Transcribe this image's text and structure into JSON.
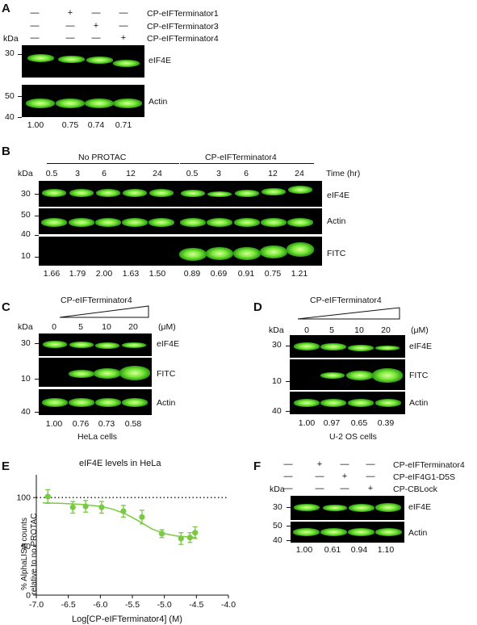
{
  "panelA": {
    "letter": "A",
    "treatments": [
      "CP-eIFTerminator1",
      "CP-eIFTerminator3",
      "CP-eIFTerminator4"
    ],
    "signs": [
      [
        "—",
        "+",
        "—",
        "—"
      ],
      [
        "—",
        "—",
        "+",
        "—"
      ],
      [
        "—",
        "—",
        "—",
        "+"
      ]
    ],
    "kda_label": "kDa",
    "mw": [
      "30",
      "50",
      "40"
    ],
    "blot_labels": [
      "eIF4E",
      "Actin"
    ],
    "quant": [
      "1.00",
      "0.75",
      "0.74",
      "0.71"
    ]
  },
  "panelB": {
    "letter": "B",
    "group1": "No PROTAC",
    "group2": "CP-eIFTerminator4",
    "times": [
      "0.5",
      "3",
      "6",
      "12",
      "24",
      "0.5",
      "3",
      "6",
      "12",
      "24"
    ],
    "time_label": "Time (hr)",
    "kda_label": "kDa",
    "mw": [
      "30",
      "50",
      "40",
      "10"
    ],
    "blot_labels": [
      "eIF4E",
      "Actin",
      "FITC"
    ],
    "quant": [
      "1.66",
      "1.79",
      "2.00",
      "1.63",
      "1.50",
      "0.89",
      "0.69",
      "0.91",
      "0.75",
      "1.21"
    ]
  },
  "panelC": {
    "letter": "C",
    "compound": "CP-eIFTerminator4",
    "doses": [
      "0",
      "5",
      "10",
      "20"
    ],
    "unit": "(μM)",
    "kda_label": "kDa",
    "mw": [
      "30",
      "10",
      "40"
    ],
    "blot_labels": [
      "eIF4E",
      "FITC",
      "Actin"
    ],
    "quant": [
      "1.00",
      "0.76",
      "0.73",
      "0.58"
    ],
    "cell_line": "HeLa cells"
  },
  "panelD": {
    "letter": "D",
    "compound": "CP-eIFTerminator4",
    "doses": [
      "0",
      "5",
      "10",
      "20"
    ],
    "unit": "(μM)",
    "kda_label": "kDa",
    "mw": [
      "30",
      "10",
      "40"
    ],
    "blot_labels": [
      "eIF4E",
      "FITC",
      "Actin"
    ],
    "quant": [
      "1.00",
      "0.97",
      "0.65",
      "0.39"
    ],
    "cell_line": "U-2 OS cells"
  },
  "panelE": {
    "letter": "E",
    "chart_data": {
      "type": "scatter",
      "title": "eIF4E levels in HeLa",
      "xlabel": "Log[CP-eIFTerminator4] (M)",
      "ylabel_line1": "% AlphaLISA counts",
      "ylabel_line2": "relative to no PROTAC",
      "xlim": [
        -7.0,
        -4.0
      ],
      "ylim": [
        0,
        120
      ],
      "xticks": [
        "-7.0",
        "-6.5",
        "-6.0",
        "-5.5",
        "-5.0",
        "-4.5",
        "-4.0"
      ],
      "yticks": [
        "0",
        "50",
        "100"
      ],
      "reference_line": 100,
      "x": [
        -6.82,
        -6.43,
        -6.23,
        -5.98,
        -5.64,
        -5.35,
        -5.04,
        -4.74,
        -4.6,
        -4.52
      ],
      "y": [
        101,
        90,
        91,
        90,
        86,
        80,
        63,
        58,
        59,
        64
      ],
      "err": [
        7,
        6,
        6,
        6,
        6,
        7,
        4,
        6,
        5,
        6
      ],
      "fit": [
        [
          -6.9,
          94.5
        ],
        [
          -6.6,
          94
        ],
        [
          -6.3,
          93
        ],
        [
          -6.0,
          91
        ],
        [
          -5.8,
          88
        ],
        [
          -5.6,
          83
        ],
        [
          -5.4,
          76
        ],
        [
          -5.2,
          68
        ],
        [
          -5.0,
          63
        ],
        [
          -4.8,
          60.5
        ],
        [
          -4.6,
          59.5
        ],
        [
          -4.5,
          59
        ]
      ],
      "color": "#7ac943"
    }
  },
  "panelF": {
    "letter": "F",
    "treatments": [
      "CP-eIFTerminator4",
      "CP-eIF4G1-D5S",
      "CP-CBLock"
    ],
    "signs": [
      [
        "—",
        "+",
        "—",
        "—"
      ],
      [
        "—",
        "—",
        "+",
        "—"
      ],
      [
        "—",
        "—",
        "—",
        "+"
      ]
    ],
    "kda_label": "kDa",
    "mw": [
      "30",
      "50",
      "40"
    ],
    "blot_labels": [
      "eIF4E",
      "Actin"
    ],
    "quant": [
      "1.00",
      "0.61",
      "0.94",
      "1.10"
    ]
  }
}
